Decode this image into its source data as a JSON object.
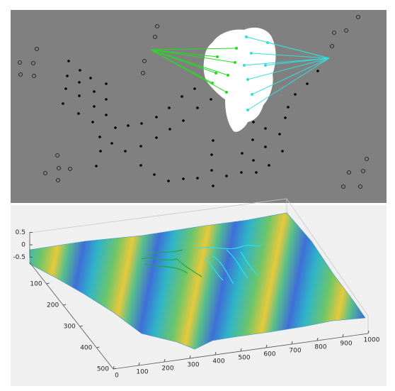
{
  "surface_plot": {
    "z_ticks": [
      0.5,
      0,
      -0.5
    ],
    "y_ticks": [
      100,
      200,
      300,
      400,
      500
    ],
    "x_ticks": [
      0,
      100,
      200,
      300,
      400,
      500,
      600,
      700,
      800,
      900,
      1000
    ]
  }
}
